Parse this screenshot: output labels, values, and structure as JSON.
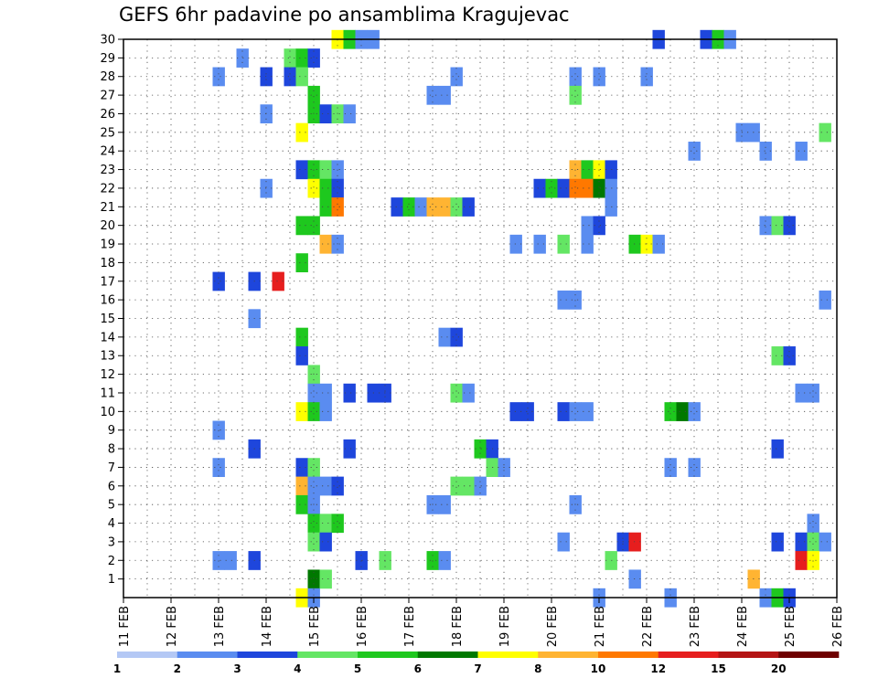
{
  "chart_data": {
    "type": "heatmap",
    "title": "GEFS 6hr padavine po ansamblima Kragujevac",
    "xlabel": "",
    "ylabel": "",
    "x_ticks": [
      "11 FEB",
      "12 FEB",
      "13 FEB",
      "14 FEB",
      "15 FEB",
      "16 FEB",
      "17 FEB",
      "18 FEB",
      "19 FEB",
      "20 FEB",
      "21 FEB",
      "22 FEB",
      "23 FEB",
      "24 FEB",
      "25 FEB",
      "26 FEB"
    ],
    "xlim_days": [
      11,
      26
    ],
    "y_ticks": [
      "1",
      "2",
      "3",
      "4",
      "5",
      "6",
      "7",
      "8",
      "9",
      "10",
      "11",
      "12",
      "13",
      "14",
      "15",
      "16",
      "17",
      "18",
      "19",
      "20",
      "21",
      "22",
      "23",
      "24",
      "25",
      "26",
      "27",
      "28",
      "29",
      "30"
    ],
    "ylim_members": [
      0,
      30
    ],
    "grid": true,
    "grid_style": "dotted",
    "colorbar": {
      "placement": "bottom",
      "labels": [
        "1",
        "2",
        "3",
        "4",
        "5",
        "6",
        "7",
        "8",
        "10",
        "12",
        "15",
        "20"
      ],
      "colors": [
        "#b4c8f5",
        "#5a8cf0",
        "#1e46dc",
        "#64e664",
        "#1ec81e",
        "#007800",
        "#ffff00",
        "#ffb432",
        "#ff7800",
        "#e61e1e",
        "#b41414",
        "#6e0000"
      ]
    },
    "cells": [
      [
        30,
        15.5,
        6
      ],
      [
        30,
        15.75,
        4
      ],
      [
        30,
        16,
        1
      ],
      [
        30,
        16.25,
        1
      ],
      [
        30,
        22.25,
        2
      ],
      [
        30,
        23.25,
        2
      ],
      [
        30,
        23.5,
        4
      ],
      [
        30,
        23.75,
        1
      ],
      [
        29,
        13.5,
        1
      ],
      [
        29,
        14.5,
        3
      ],
      [
        29,
        14.75,
        4
      ],
      [
        29,
        15,
        2
      ],
      [
        28,
        13,
        1
      ],
      [
        28,
        14,
        2
      ],
      [
        28,
        14.5,
        2
      ],
      [
        28,
        14.75,
        3
      ],
      [
        28,
        18,
        1
      ],
      [
        28,
        20.5,
        1
      ],
      [
        28,
        21,
        1
      ],
      [
        28,
        22,
        1
      ],
      [
        27,
        15,
        4
      ],
      [
        27,
        17.5,
        1
      ],
      [
        27,
        17.75,
        1
      ],
      [
        27,
        20.5,
        3
      ],
      [
        26,
        14,
        1
      ],
      [
        26,
        15,
        4
      ],
      [
        26,
        15.25,
        2
      ],
      [
        26,
        15.5,
        3
      ],
      [
        26,
        15.75,
        1
      ],
      [
        25,
        14.75,
        6
      ],
      [
        25,
        24,
        1
      ],
      [
        25,
        24.25,
        1
      ],
      [
        25,
        25.75,
        3
      ],
      [
        24,
        23,
        1
      ],
      [
        24,
        24.5,
        1
      ],
      [
        24,
        25.25,
        1
      ],
      [
        23,
        14.75,
        2
      ],
      [
        23,
        15,
        4
      ],
      [
        23,
        15.25,
        3
      ],
      [
        23,
        15.5,
        1
      ],
      [
        23,
        20.5,
        7
      ],
      [
        23,
        20.75,
        4
      ],
      [
        23,
        21,
        6
      ],
      [
        23,
        21.25,
        2
      ],
      [
        22,
        14,
        1
      ],
      [
        22,
        15,
        6
      ],
      [
        22,
        15.25,
        4
      ],
      [
        22,
        15.5,
        2
      ],
      [
        22,
        19.75,
        2
      ],
      [
        22,
        20,
        4
      ],
      [
        22,
        20.25,
        2
      ],
      [
        22,
        20.5,
        8
      ],
      [
        22,
        20.75,
        8
      ],
      [
        22,
        21,
        5
      ],
      [
        22,
        21.25,
        1
      ],
      [
        21,
        15.25,
        4
      ],
      [
        21,
        15.5,
        8
      ],
      [
        21,
        16.75,
        2
      ],
      [
        21,
        17,
        4
      ],
      [
        21,
        17.25,
        1
      ],
      [
        21,
        17.5,
        7
      ],
      [
        21,
        17.75,
        7
      ],
      [
        21,
        18,
        3
      ],
      [
        21,
        18.25,
        2
      ],
      [
        21,
        21.25,
        1
      ],
      [
        20,
        14.75,
        4
      ],
      [
        20,
        15,
        4
      ],
      [
        20,
        20.75,
        1
      ],
      [
        20,
        21,
        2
      ],
      [
        20,
        24.5,
        1
      ],
      [
        20,
        24.75,
        3
      ],
      [
        20,
        25,
        2
      ],
      [
        19,
        15.25,
        7
      ],
      [
        19,
        15.5,
        1
      ],
      [
        19,
        19.25,
        1
      ],
      [
        19,
        19.75,
        1
      ],
      [
        19,
        20.25,
        3
      ],
      [
        19,
        20.75,
        1
      ],
      [
        19,
        21.75,
        4
      ],
      [
        19,
        22,
        6
      ],
      [
        19,
        22.25,
        1
      ],
      [
        18,
        14.75,
        4
      ],
      [
        17,
        13,
        2
      ],
      [
        17,
        13.75,
        2
      ],
      [
        17,
        14.25,
        9
      ],
      [
        16,
        20.25,
        1
      ],
      [
        16,
        20.5,
        1
      ],
      [
        16,
        25.75,
        1
      ],
      [
        15,
        13.75,
        1
      ],
      [
        14,
        14.75,
        4
      ],
      [
        14,
        17.75,
        1
      ],
      [
        14,
        18,
        2
      ],
      [
        13,
        14.75,
        2
      ],
      [
        13,
        24.75,
        3
      ],
      [
        13,
        25,
        2
      ],
      [
        12,
        15,
        3
      ],
      [
        11,
        15,
        1
      ],
      [
        11,
        15.25,
        1
      ],
      [
        11,
        15.75,
        2
      ],
      [
        11,
        16.25,
        2
      ],
      [
        11,
        16.5,
        2
      ],
      [
        11,
        18,
        3
      ],
      [
        11,
        18.25,
        1
      ],
      [
        11,
        25.25,
        1
      ],
      [
        11,
        25.5,
        1
      ],
      [
        10,
        14.75,
        6
      ],
      [
        10,
        15,
        4
      ],
      [
        10,
        15.25,
        1
      ],
      [
        10,
        19.25,
        2
      ],
      [
        10,
        19.5,
        2
      ],
      [
        10,
        20.25,
        2
      ],
      [
        10,
        20.5,
        1
      ],
      [
        10,
        20.75,
        1
      ],
      [
        10,
        22.5,
        4
      ],
      [
        10,
        22.75,
        5
      ],
      [
        10,
        23,
        1
      ],
      [
        9,
        13,
        1
      ],
      [
        8,
        13.75,
        2
      ],
      [
        8,
        15.75,
        2
      ],
      [
        8,
        18.5,
        4
      ],
      [
        8,
        18.75,
        2
      ],
      [
        8,
        24.75,
        2
      ],
      [
        7,
        13,
        1
      ],
      [
        7,
        14.75,
        2
      ],
      [
        7,
        15,
        3
      ],
      [
        7,
        18.75,
        3
      ],
      [
        7,
        19,
        1
      ],
      [
        7,
        22.5,
        1
      ],
      [
        7,
        23,
        1
      ],
      [
        6,
        14.75,
        7
      ],
      [
        6,
        15,
        1
      ],
      [
        6,
        15.25,
        1
      ],
      [
        6,
        15.5,
        2
      ],
      [
        6,
        18,
        3
      ],
      [
        6,
        18.25,
        3
      ],
      [
        6,
        18.5,
        1
      ],
      [
        5,
        14.75,
        4
      ],
      [
        5,
        15,
        1
      ],
      [
        5,
        17.5,
        1
      ],
      [
        5,
        17.75,
        1
      ],
      [
        5,
        20.5,
        1
      ],
      [
        4,
        15,
        4
      ],
      [
        4,
        15.25,
        3
      ],
      [
        4,
        15.5,
        4
      ],
      [
        4,
        25.5,
        1
      ],
      [
        3,
        15,
        3
      ],
      [
        3,
        15.25,
        2
      ],
      [
        3,
        20.25,
        1
      ],
      [
        3,
        21.5,
        2
      ],
      [
        3,
        21.75,
        9
      ],
      [
        3,
        24.75,
        2
      ],
      [
        3,
        25.25,
        2
      ],
      [
        3,
        25.5,
        3
      ],
      [
        3,
        25.75,
        1
      ],
      [
        2,
        13,
        1
      ],
      [
        2,
        13.25,
        1
      ],
      [
        2,
        13.75,
        2
      ],
      [
        2,
        16,
        2
      ],
      [
        2,
        16.5,
        3
      ],
      [
        2,
        17.5,
        4
      ],
      [
        2,
        17.75,
        1
      ],
      [
        2,
        21.25,
        3
      ],
      [
        2,
        25.25,
        9
      ],
      [
        2,
        25.5,
        6
      ],
      [
        1,
        15,
        5
      ],
      [
        1,
        15.25,
        3
      ],
      [
        1,
        21.75,
        1
      ],
      [
        1,
        24.25,
        7
      ],
      [
        0,
        14.75,
        6
      ],
      [
        0,
        15,
        1
      ],
      [
        0,
        21,
        1
      ],
      [
        0,
        22.5,
        1
      ],
      [
        0,
        24.5,
        1
      ],
      [
        0,
        24.75,
        4
      ],
      [
        0,
        25,
        2
      ]
    ]
  }
}
